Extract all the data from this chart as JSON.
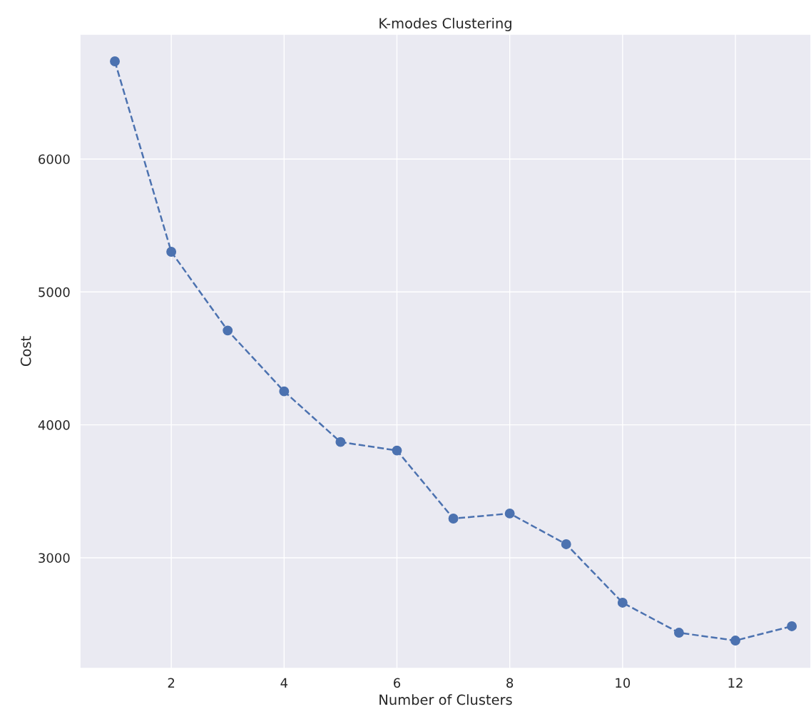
{
  "chart_data": {
    "type": "line",
    "title": "K-modes Clustering",
    "xlabel": "Number of Clusters",
    "ylabel": "Cost",
    "x": [
      1,
      2,
      3,
      4,
      5,
      6,
      7,
      8,
      9,
      10,
      11,
      12,
      13
    ],
    "series": [
      {
        "color": "#4c72b0",
        "values": [
          6735,
          5302,
          4710,
          4252,
          3871,
          3807,
          3295,
          3333,
          3102,
          2662,
          2436,
          2377,
          2485
        ]
      }
    ],
    "xlim": [
      0.38,
      13.34
    ],
    "xticks": [
      2,
      4,
      6,
      8,
      10,
      12
    ],
    "ylim": [
      2168,
      6939
    ],
    "yticks": [
      3000,
      4000,
      5000,
      6000
    ],
    "grid": true,
    "marker": "circle",
    "line_style": "dashed"
  }
}
